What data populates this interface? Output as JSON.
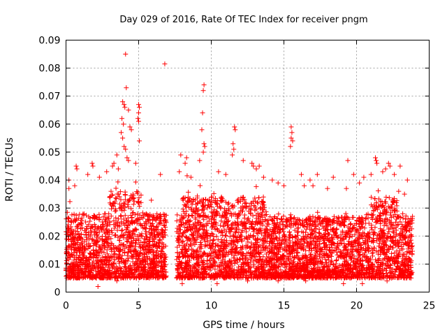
{
  "chart_data": {
    "type": "scatter",
    "title": "Day 029 of 2016, Rate Of TEC Index for receiver pngm",
    "xlabel": "GPS time / hours",
    "ylabel": "ROTI / TECUs",
    "xlim": [
      0,
      25
    ],
    "ylim": [
      0,
      0.09
    ],
    "grid": true,
    "marker": "+",
    "color": "#ff0000",
    "x_ticks": [
      0,
      5,
      10,
      15,
      20,
      25
    ],
    "x_tick_labels": [
      "0",
      "5",
      "10",
      "15",
      "20",
      "25"
    ],
    "y_ticks": [
      0,
      0.01,
      0.02,
      0.03,
      0.04,
      0.05,
      0.06,
      0.07,
      0.08,
      0.09
    ],
    "y_tick_labels": [
      "0",
      "0.01",
      "0.02",
      "0.03",
      "0.04",
      "0.05",
      "0.06",
      "0.07",
      "0.08",
      "0.09"
    ],
    "data_gap_hours": [
      6.9,
      7.6
    ],
    "series": [
      {
        "name": "ROTI",
        "points": [
          [
            4.1,
            0.085
          ],
          [
            6.8,
            0.0815
          ],
          [
            9.5,
            0.074
          ],
          [
            9.45,
            0.072
          ],
          [
            4.15,
            0.073
          ],
          [
            3.9,
            0.068
          ],
          [
            4.0,
            0.067
          ],
          [
            4.05,
            0.066
          ],
          [
            4.3,
            0.065
          ],
          [
            5.0,
            0.067
          ],
          [
            5.05,
            0.066
          ],
          [
            5.0,
            0.064
          ],
          [
            4.95,
            0.062
          ],
          [
            5.0,
            0.061
          ],
          [
            9.4,
            0.064
          ],
          [
            3.85,
            0.062
          ],
          [
            3.95,
            0.06
          ],
          [
            4.4,
            0.059
          ],
          [
            4.5,
            0.058
          ],
          [
            3.8,
            0.057
          ],
          [
            3.9,
            0.055
          ],
          [
            4.0,
            0.052
          ],
          [
            4.1,
            0.051
          ],
          [
            5.05,
            0.054
          ],
          [
            9.35,
            0.058
          ],
          [
            11.6,
            0.059
          ],
          [
            11.65,
            0.058
          ],
          [
            15.5,
            0.059
          ],
          [
            15.55,
            0.057
          ],
          [
            15.5,
            0.055
          ],
          [
            15.6,
            0.054
          ],
          [
            15.45,
            0.052
          ],
          [
            9.5,
            0.053
          ],
          [
            9.55,
            0.052
          ],
          [
            9.45,
            0.05
          ],
          [
            11.5,
            0.053
          ],
          [
            11.55,
            0.051
          ],
          [
            11.45,
            0.049
          ],
          [
            3.5,
            0.049
          ],
          [
            4.2,
            0.048
          ],
          [
            4.3,
            0.047
          ],
          [
            4.8,
            0.046
          ],
          [
            3.3,
            0.046
          ],
          [
            3.2,
            0.045
          ],
          [
            7.9,
            0.049
          ],
          [
            8.3,
            0.048
          ],
          [
            8.2,
            0.046
          ],
          [
            9.2,
            0.047
          ],
          [
            12.8,
            0.046
          ],
          [
            12.9,
            0.045
          ],
          [
            13.1,
            0.044
          ],
          [
            13.3,
            0.045
          ],
          [
            12.2,
            0.047
          ],
          [
            0.7,
            0.045
          ],
          [
            0.75,
            0.044
          ],
          [
            1.8,
            0.046
          ],
          [
            1.85,
            0.045
          ],
          [
            19.4,
            0.047
          ],
          [
            21.3,
            0.048
          ],
          [
            21.35,
            0.047
          ],
          [
            21.4,
            0.046
          ],
          [
            22.2,
            0.046
          ],
          [
            22.3,
            0.045
          ],
          [
            22.0,
            0.044
          ],
          [
            23.0,
            0.045
          ],
          [
            0.2,
            0.04
          ],
          [
            1.5,
            0.042
          ],
          [
            2.3,
            0.041
          ],
          [
            2.8,
            0.043
          ],
          [
            3.6,
            0.044
          ],
          [
            6.5,
            0.042
          ],
          [
            7.8,
            0.043
          ],
          [
            8.6,
            0.041
          ],
          [
            10.5,
            0.043
          ],
          [
            11.0,
            0.042
          ],
          [
            13.6,
            0.041
          ],
          [
            14.2,
            0.04
          ],
          [
            16.2,
            0.042
          ],
          [
            16.8,
            0.04
          ],
          [
            17.3,
            0.042
          ],
          [
            18.4,
            0.041
          ],
          [
            19.8,
            0.042
          ],
          [
            20.5,
            0.041
          ],
          [
            21.0,
            0.042
          ],
          [
            21.8,
            0.043
          ],
          [
            22.6,
            0.042
          ],
          [
            23.5,
            0.04
          ],
          [
            17.0,
            0.038
          ],
          [
            16.4,
            0.038
          ],
          [
            20.2,
            0.039
          ],
          [
            19.3,
            0.037
          ],
          [
            18.0,
            0.037
          ],
          [
            15.0,
            0.038
          ],
          [
            14.6,
            0.039
          ],
          [
            22.9,
            0.036
          ],
          [
            0.2,
            0.037
          ],
          [
            0.6,
            0.038
          ],
          [
            23.3,
            0.035
          ],
          [
            6.7,
            0.006
          ],
          [
            6.8,
            0.008
          ],
          [
            2.2,
            0.002
          ],
          [
            8.0,
            0.003
          ],
          [
            10.4,
            0.003
          ],
          [
            20.4,
            0.003
          ],
          [
            19.1,
            0.003
          ],
          [
            14.6,
            0.004
          ],
          [
            3.5,
            0.004
          ],
          [
            12.5,
            0.004
          ],
          [
            16.5,
            0.004
          ],
          [
            22.1,
            0.004
          ]
        ]
      }
    ]
  }
}
